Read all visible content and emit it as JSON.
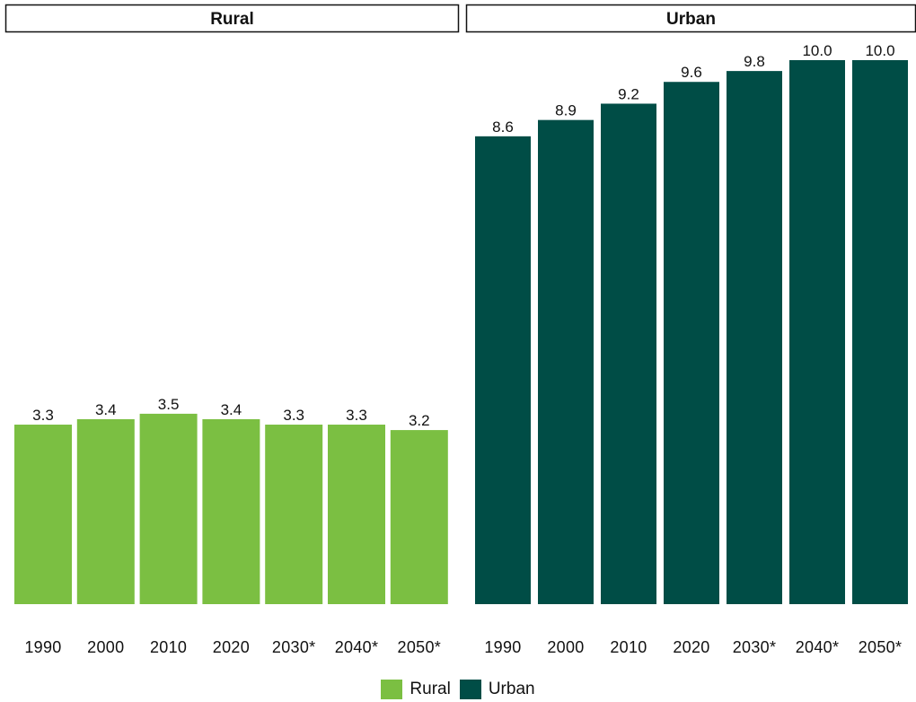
{
  "chart_data": {
    "type": "bar",
    "categories": [
      "1990",
      "2000",
      "2010",
      "2020",
      "2030*",
      "2040*",
      "2050*"
    ],
    "facets": [
      {
        "title": "Rural",
        "color": "#7bbf42",
        "values": [
          3.3,
          3.4,
          3.5,
          3.4,
          3.3,
          3.3,
          3.2
        ],
        "value_labels": [
          "3.3",
          "3.4",
          "3.5",
          "3.4",
          "3.3",
          "3.3",
          "3.2"
        ]
      },
      {
        "title": "Urban",
        "color": "#004d46",
        "values": [
          8.6,
          8.9,
          9.2,
          9.6,
          9.8,
          10.0,
          10.0
        ],
        "value_labels": [
          "8.6",
          "8.9",
          "9.2",
          "9.6",
          "9.8",
          "10.0",
          "10.0"
        ]
      }
    ],
    "ylim": [
      0,
      10.0
    ],
    "grid": false,
    "legend": {
      "position": "bottom-center",
      "entries": [
        {
          "label": "Rural",
          "color": "#7bbf42"
        },
        {
          "label": "Urban",
          "color": "#004d46"
        }
      ]
    }
  }
}
